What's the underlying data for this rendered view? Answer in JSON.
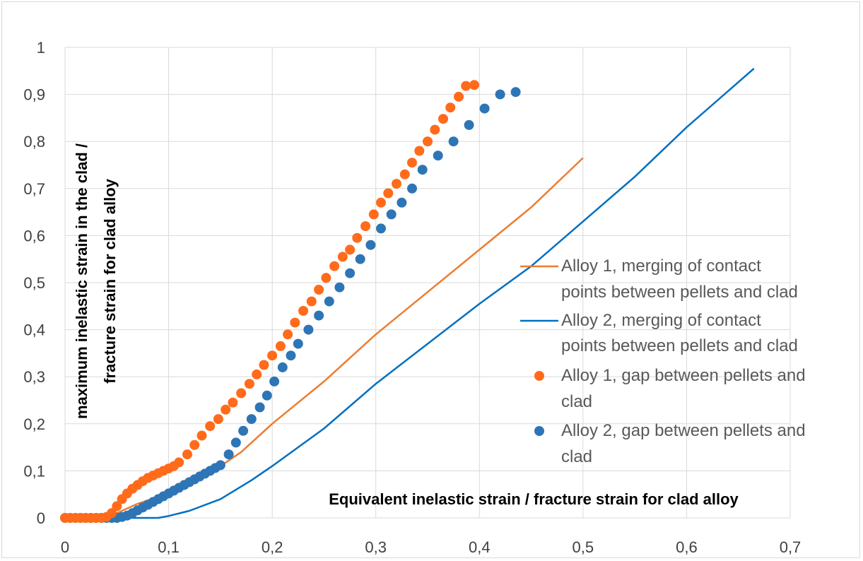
{
  "chart_data": {
    "type": "line",
    "title": "",
    "xlabel": "Equivalent inelastic strain / fracture strain for clad alloy",
    "ylabel_lines": [
      "maximum inelastic strain in the clad  /",
      "fracture strain for clad alloy"
    ],
    "xlim": [
      0,
      0.7
    ],
    "ylim": [
      0,
      1
    ],
    "x_ticks": [
      0,
      0.1,
      0.2,
      0.3,
      0.4,
      0.5,
      0.6,
      0.7
    ],
    "x_tick_labels": [
      "0",
      "0,1",
      "0,2",
      "0,3",
      "0,4",
      "0,5",
      "0,6",
      "0,7"
    ],
    "y_ticks": [
      0,
      0.1,
      0.2,
      0.3,
      0.4,
      0.5,
      0.6,
      0.7,
      0.8,
      0.9,
      1
    ],
    "y_tick_labels": [
      "0",
      "0,1",
      "0,2",
      "0,3",
      "0,4",
      "0,5",
      "0,6",
      "0,7",
      "0,8",
      "0,9",
      "1"
    ],
    "grid": true,
    "legend_position": "right",
    "series": [
      {
        "name": "Alloy 1, merging of contact points between pellets and clad",
        "legend_lines": [
          "Alloy 1, merging of contact",
          "points between pellets and clad"
        ],
        "style": "line",
        "color": "#ED7D31",
        "x": [
          0,
          0.03,
          0.05,
          0.07,
          0.09,
          0.11,
          0.13,
          0.15,
          0.17,
          0.2,
          0.25,
          0.3,
          0.35,
          0.4,
          0.45,
          0.5
        ],
        "y": [
          0,
          0,
          0.01,
          0.03,
          0.045,
          0.06,
          0.08,
          0.11,
          0.14,
          0.2,
          0.29,
          0.39,
          0.48,
          0.57,
          0.66,
          0.765
        ]
      },
      {
        "name": "Alloy 2, merging of contact points between pellets and clad",
        "legend_lines": [
          "Alloy 2, merging of contact",
          "points between pellets and clad"
        ],
        "style": "line",
        "color": "#0070C0",
        "x": [
          0,
          0.05,
          0.09,
          0.1,
          0.12,
          0.15,
          0.18,
          0.2,
          0.25,
          0.3,
          0.35,
          0.4,
          0.45,
          0.5,
          0.55,
          0.6,
          0.665
        ],
        "y": [
          0,
          0,
          0,
          0.004,
          0.015,
          0.04,
          0.08,
          0.11,
          0.19,
          0.285,
          0.37,
          0.455,
          0.535,
          0.63,
          0.725,
          0.83,
          0.955
        ]
      },
      {
        "name": "Alloy 1, gap between pellets and clad",
        "legend_lines": [
          "Alloy 1, gap between pellets and",
          "clad"
        ],
        "style": "markers",
        "color": "#FF6B1A",
        "x": [
          0,
          0.005,
          0.01,
          0.015,
          0.02,
          0.025,
          0.03,
          0.035,
          0.04,
          0.045,
          0.05,
          0.055,
          0.06,
          0.065,
          0.07,
          0.075,
          0.08,
          0.085,
          0.09,
          0.095,
          0.1,
          0.105,
          0.11,
          0.118,
          0.125,
          0.132,
          0.14,
          0.148,
          0.155,
          0.162,
          0.17,
          0.178,
          0.185,
          0.192,
          0.2,
          0.208,
          0.215,
          0.222,
          0.23,
          0.238,
          0.245,
          0.252,
          0.26,
          0.268,
          0.275,
          0.282,
          0.29,
          0.298,
          0.305,
          0.312,
          0.32,
          0.328,
          0.335,
          0.342,
          0.35,
          0.357,
          0.365,
          0.372,
          0.38,
          0.387,
          0.395
        ],
        "y": [
          0,
          0,
          0,
          0,
          0,
          0,
          0,
          0,
          0.002,
          0.01,
          0.025,
          0.04,
          0.052,
          0.062,
          0.07,
          0.078,
          0.085,
          0.09,
          0.095,
          0.1,
          0.105,
          0.11,
          0.118,
          0.135,
          0.155,
          0.175,
          0.195,
          0.21,
          0.23,
          0.245,
          0.265,
          0.285,
          0.305,
          0.325,
          0.345,
          0.365,
          0.39,
          0.415,
          0.44,
          0.46,
          0.485,
          0.51,
          0.535,
          0.555,
          0.57,
          0.595,
          0.62,
          0.645,
          0.67,
          0.69,
          0.71,
          0.73,
          0.755,
          0.78,
          0.8,
          0.825,
          0.848,
          0.872,
          0.895,
          0.918,
          0.92
        ]
      },
      {
        "name": "Alloy 2, gap between pellets and clad",
        "legend_lines": [
          "Alloy 2, gap between pellets and",
          "clad"
        ],
        "style": "markers",
        "color": "#2E75B6",
        "x": [
          0,
          0.005,
          0.01,
          0.015,
          0.02,
          0.025,
          0.03,
          0.035,
          0.04,
          0.045,
          0.05,
          0.055,
          0.06,
          0.065,
          0.07,
          0.075,
          0.08,
          0.085,
          0.09,
          0.095,
          0.1,
          0.105,
          0.11,
          0.115,
          0.12,
          0.125,
          0.13,
          0.135,
          0.14,
          0.145,
          0.15,
          0.158,
          0.165,
          0.172,
          0.18,
          0.188,
          0.195,
          0.202,
          0.21,
          0.218,
          0.225,
          0.235,
          0.245,
          0.255,
          0.265,
          0.275,
          0.285,
          0.295,
          0.305,
          0.315,
          0.325,
          0.335,
          0.345,
          0.36,
          0.375,
          0.39,
          0.405,
          0.42,
          0.435
        ],
        "y": [
          0,
          0,
          0,
          0,
          0,
          0,
          0,
          0,
          0,
          0,
          0,
          0.002,
          0.005,
          0.01,
          0.016,
          0.022,
          0.028,
          0.034,
          0.04,
          0.046,
          0.052,
          0.058,
          0.064,
          0.07,
          0.076,
          0.082,
          0.088,
          0.094,
          0.1,
          0.106,
          0.112,
          0.135,
          0.16,
          0.185,
          0.21,
          0.235,
          0.26,
          0.29,
          0.32,
          0.345,
          0.37,
          0.4,
          0.43,
          0.46,
          0.49,
          0.52,
          0.55,
          0.58,
          0.615,
          0.645,
          0.67,
          0.7,
          0.74,
          0.77,
          0.8,
          0.835,
          0.87,
          0.9,
          0.905
        ]
      }
    ]
  }
}
